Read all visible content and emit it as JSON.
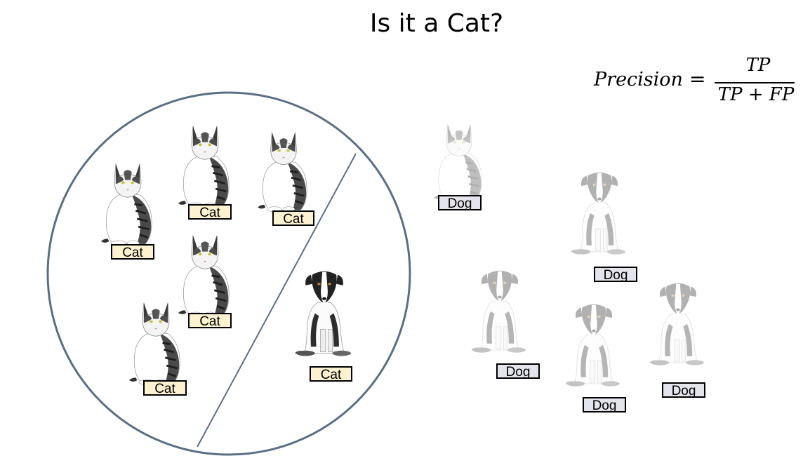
{
  "title": "Is it a Cat?",
  "formula": {
    "lhs": "Precision",
    "equals": "=",
    "numerator": "TP",
    "denominator": "TP + FP"
  },
  "selected_items": [
    {
      "animal": "cat",
      "label": "Cat"
    },
    {
      "animal": "cat",
      "label": "Cat"
    },
    {
      "animal": "cat",
      "label": "Cat"
    },
    {
      "animal": "cat",
      "label": "Cat"
    },
    {
      "animal": "cat",
      "label": "Cat"
    },
    {
      "animal": "dog",
      "label": "Cat"
    }
  ],
  "unselected_items": [
    {
      "animal": "cat",
      "label": "Dog"
    },
    {
      "animal": "dog",
      "label": "Dog"
    },
    {
      "animal": "dog",
      "label": "Dog"
    },
    {
      "animal": "dog",
      "label": "Dog"
    },
    {
      "animal": "dog",
      "label": "Dog"
    }
  ],
  "colors": {
    "circle": "#5a6f86",
    "cat_label_bg": "#fdf2cf",
    "dog_label_bg": "#e4e4ec"
  }
}
